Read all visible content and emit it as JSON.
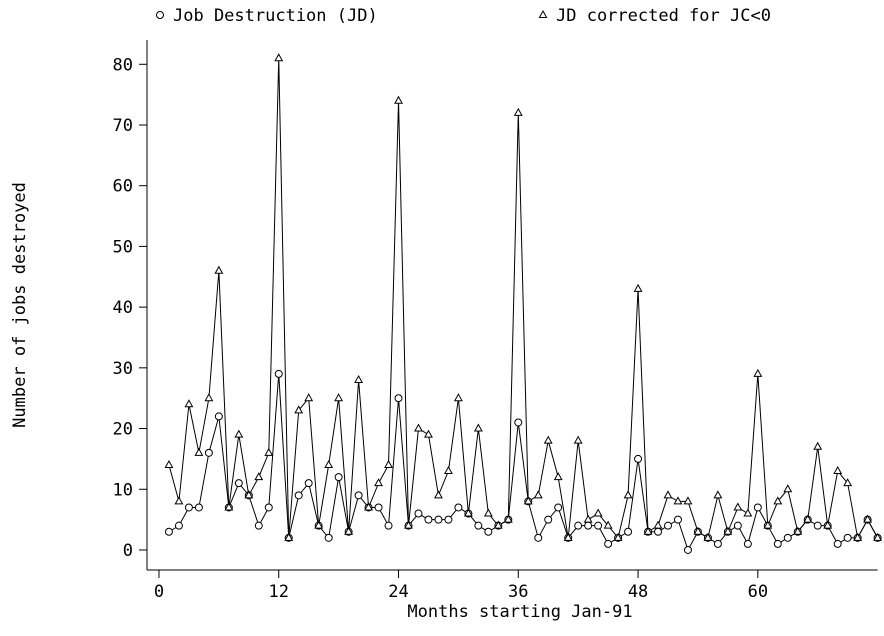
{
  "chart_data": {
    "type": "line",
    "x_label": "Months starting Jan-91",
    "y_label": "Number of jobs destroyed",
    "x": [
      1,
      2,
      3,
      4,
      5,
      6,
      7,
      8,
      9,
      10,
      11,
      12,
      13,
      14,
      15,
      16,
      17,
      18,
      19,
      20,
      21,
      22,
      23,
      24,
      25,
      26,
      27,
      28,
      29,
      30,
      31,
      32,
      33,
      34,
      35,
      36,
      37,
      38,
      39,
      40,
      41,
      42,
      43,
      44,
      45,
      46,
      47,
      48,
      49,
      50,
      51,
      52,
      53,
      54,
      55,
      56,
      57,
      58,
      59,
      60,
      61,
      62,
      63,
      64,
      65,
      66,
      67,
      68,
      69,
      70,
      71,
      72
    ],
    "series": [
      {
        "name": "Job Destruction (JD)",
        "marker": "circle",
        "color": "#000000",
        "values": [
          3,
          4,
          7,
          7,
          16,
          22,
          7,
          11,
          9,
          4,
          7,
          29,
          2,
          9,
          11,
          4,
          2,
          12,
          3,
          9,
          7,
          7,
          4,
          25,
          4,
          6,
          5,
          5,
          5,
          7,
          6,
          4,
          3,
          4,
          5,
          21,
          8,
          2,
          5,
          7,
          2,
          4,
          4,
          4,
          1,
          2,
          3,
          15,
          3,
          3,
          4,
          5,
          0,
          3,
          2,
          1,
          3,
          4,
          1,
          7,
          4,
          1,
          2,
          3,
          5,
          4,
          4,
          1,
          2,
          2,
          5,
          2
        ]
      },
      {
        "name": "JD corrected for JC<0",
        "marker": "triangle",
        "color": "#000000",
        "values": [
          14,
          8,
          24,
          16,
          25,
          46,
          7,
          19,
          9,
          12,
          16,
          81,
          2,
          23,
          25,
          4,
          14,
          25,
          3,
          28,
          7,
          11,
          14,
          74,
          4,
          20,
          19,
          9,
          13,
          25,
          6,
          20,
          6,
          4,
          5,
          72,
          8,
          9,
          18,
          12,
          2,
          18,
          5,
          6,
          4,
          2,
          9,
          43,
          3,
          4,
          9,
          8,
          8,
          3,
          2,
          9,
          3,
          7,
          6,
          29,
          4,
          8,
          10,
          3,
          5,
          17,
          4,
          13,
          11,
          2,
          5,
          2
        ]
      }
    ],
    "xlim": [
      -1.2,
      72
    ],
    "xticks": [
      0,
      12,
      24,
      36,
      48,
      60
    ],
    "ylim": [
      -3.3,
      84
    ],
    "yticks": [
      0,
      10,
      20,
      30,
      40,
      50,
      60,
      70,
      80
    ]
  }
}
